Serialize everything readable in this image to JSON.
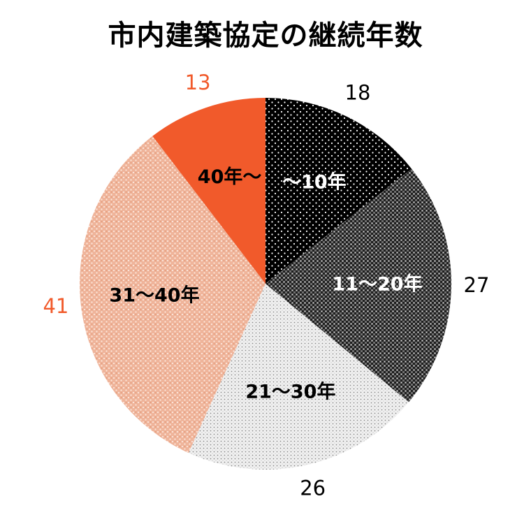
{
  "chart_data": {
    "type": "pie",
    "title": "市内建築協定の継続年数",
    "slices": [
      {
        "label": "～10年",
        "value": 18,
        "label_color": "#ffffff",
        "value_color": "#000000",
        "pattern": "black-dots"
      },
      {
        "label": "11～20年",
        "value": 27,
        "label_color": "#ffffff",
        "value_color": "#000000",
        "pattern": "gray-check"
      },
      {
        "label": "21～30年",
        "value": 26,
        "label_color": "#000000",
        "value_color": "#000000",
        "pattern": "light-dots"
      },
      {
        "label": "31～40年",
        "value": 41,
        "label_color": "#000000",
        "value_color": "#f15a2b",
        "pattern": "salmon-dots"
      },
      {
        "label": "40年～",
        "value": 13,
        "label_color": "#000000",
        "value_color": "#f15a2b",
        "pattern": "orange-solid"
      }
    ],
    "start_direction": "12 o'clock",
    "direction": "clockwise",
    "legend": "none"
  }
}
